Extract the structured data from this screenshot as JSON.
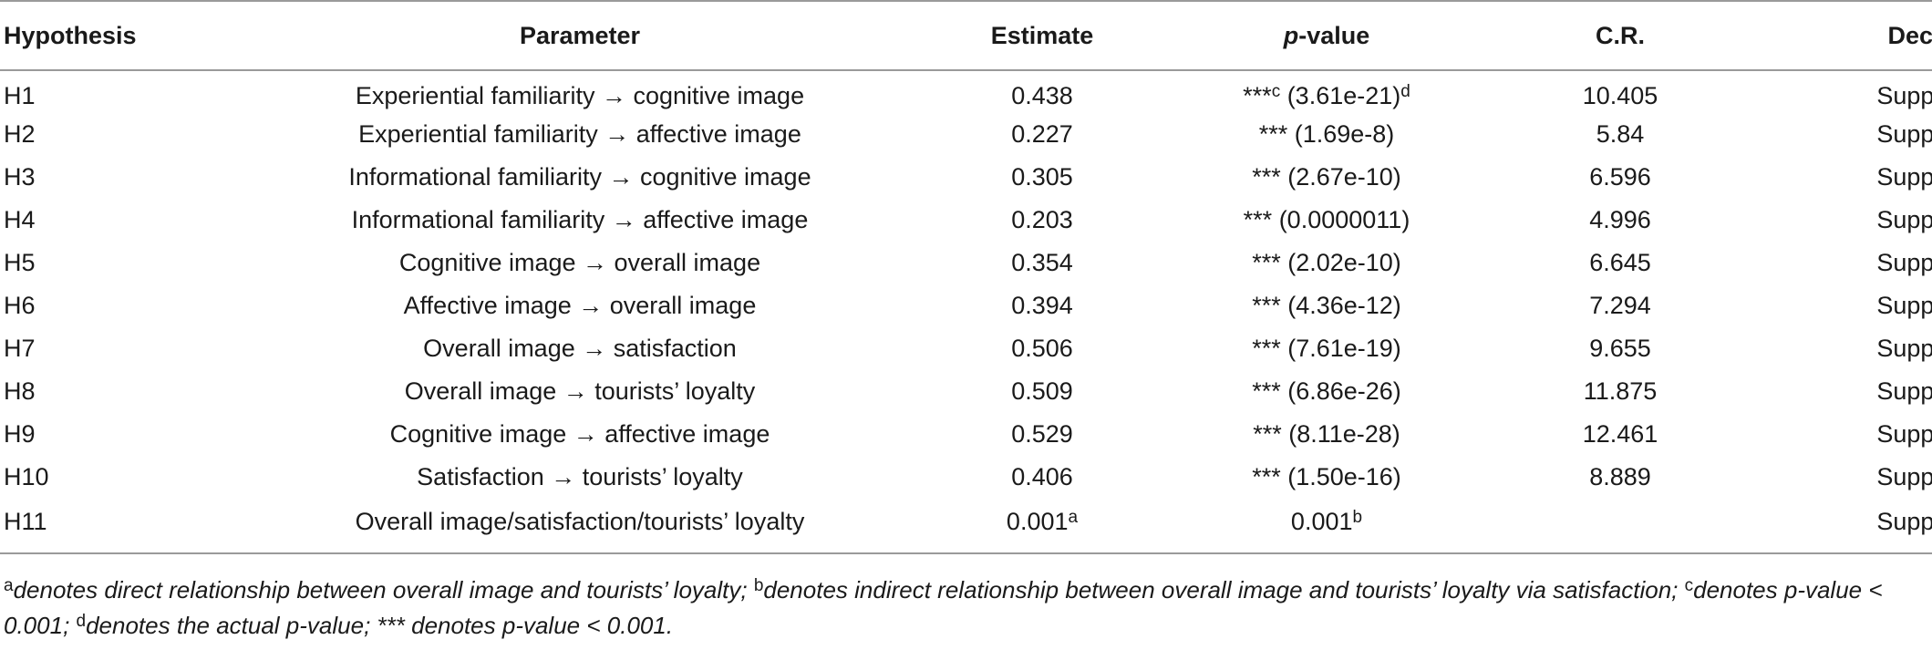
{
  "table": {
    "headers": {
      "hypothesis": "Hypothesis",
      "parameter": "Parameter",
      "estimate": "Estimate",
      "p_value_italic": "p",
      "p_value_rest": "-value",
      "cr": "C.R.",
      "decision": "Decision"
    },
    "rows": [
      {
        "hypothesis": "H1",
        "parameter": "Experiential familiarity → cognitive image",
        "estimate": "0.438",
        "estimate_sup": "",
        "p_main": "***",
        "p_sup1": "c",
        "p_rest": " (3.61e-21)",
        "p_sup2": "d",
        "cr": "10.405",
        "decision": "Supported"
      },
      {
        "hypothesis": "H2",
        "parameter": "Experiential familiarity → affective image",
        "estimate": "0.227",
        "estimate_sup": "",
        "p_main": "*** (1.69e-8)",
        "p_sup1": "",
        "p_rest": "",
        "p_sup2": "",
        "cr": "5.84",
        "decision": "Supported"
      },
      {
        "hypothesis": "H3",
        "parameter": "Informational familiarity → cognitive image",
        "estimate": "0.305",
        "estimate_sup": "",
        "p_main": "*** (2.67e-10)",
        "p_sup1": "",
        "p_rest": "",
        "p_sup2": "",
        "cr": "6.596",
        "decision": "Supported"
      },
      {
        "hypothesis": "H4",
        "parameter": "Informational familiarity → affective image",
        "estimate": "0.203",
        "estimate_sup": "",
        "p_main": "*** (0.0000011)",
        "p_sup1": "",
        "p_rest": "",
        "p_sup2": "",
        "cr": "4.996",
        "decision": "Supported"
      },
      {
        "hypothesis": "H5",
        "parameter": "Cognitive image → overall image",
        "estimate": "0.354",
        "estimate_sup": "",
        "p_main": "*** (2.02e-10)",
        "p_sup1": "",
        "p_rest": "",
        "p_sup2": "",
        "cr": "6.645",
        "decision": "Supported"
      },
      {
        "hypothesis": "H6",
        "parameter": "Affective image → overall image",
        "estimate": "0.394",
        "estimate_sup": "",
        "p_main": "*** (4.36e-12)",
        "p_sup1": "",
        "p_rest": "",
        "p_sup2": "",
        "cr": "7.294",
        "decision": "Supported"
      },
      {
        "hypothesis": "H7",
        "parameter": "Overall image → satisfaction",
        "estimate": "0.506",
        "estimate_sup": "",
        "p_main": "*** (7.61e-19)",
        "p_sup1": "",
        "p_rest": "",
        "p_sup2": "",
        "cr": "9.655",
        "decision": "Supported"
      },
      {
        "hypothesis": "H8",
        "parameter": "Overall image → tourists’ loyalty",
        "estimate": "0.509",
        "estimate_sup": "",
        "p_main": "*** (6.86e-26)",
        "p_sup1": "",
        "p_rest": "",
        "p_sup2": "",
        "cr": "11.875",
        "decision": "Supported"
      },
      {
        "hypothesis": "H9",
        "parameter": "Cognitive image → affective image",
        "estimate": "0.529",
        "estimate_sup": "",
        "p_main": "*** (8.11e-28)",
        "p_sup1": "",
        "p_rest": "",
        "p_sup2": "",
        "cr": "12.461",
        "decision": "Supported"
      },
      {
        "hypothesis": "H10",
        "parameter": "Satisfaction → tourists’ loyalty",
        "estimate": "0.406",
        "estimate_sup": "",
        "p_main": "*** (1.50e-16)",
        "p_sup1": "",
        "p_rest": "",
        "p_sup2": "",
        "cr": "8.889",
        "decision": "Supported"
      },
      {
        "hypothesis": "H11",
        "parameter": "Overall image/satisfaction/tourists’ loyalty",
        "estimate": "0.001",
        "estimate_sup": "a",
        "p_main": "0.001",
        "p_sup1": "b",
        "p_rest": "",
        "p_sup2": "",
        "cr": "",
        "decision": "Supported"
      }
    ]
  },
  "footnote": {
    "a_mark": "a",
    "a_text": "denotes direct relationship between overall image and tourists’ loyalty; ",
    "b_mark": "b",
    "b_text": "denotes indirect relationship between overall image and tourists’ loyalty via satisfaction; ",
    "c_mark": "c",
    "c_text": "denotes p-value < 0.001; ",
    "d_mark": "d",
    "d_text": "denotes the actual p-value; *** denotes p-value < 0.001."
  }
}
